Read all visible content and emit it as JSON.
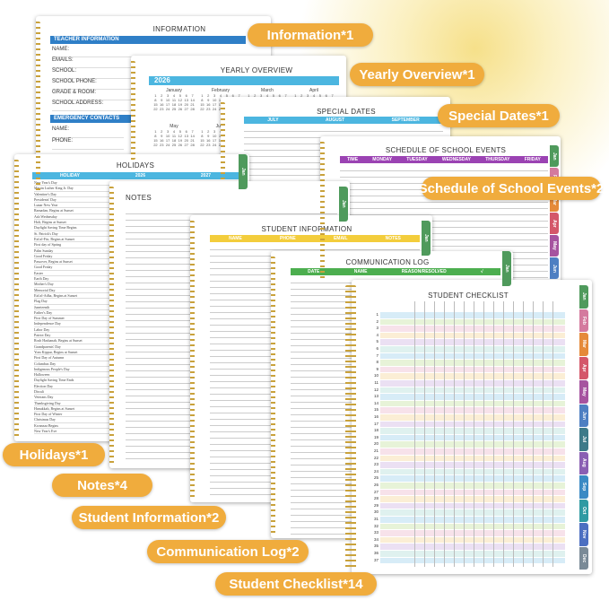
{
  "labels": {
    "information": "Information*1",
    "yearly": "Yearly Overview*1",
    "special": "Special Dates*1",
    "schedule": "Schedule of School Events*2",
    "holidays": "Holidays*1",
    "notes": "Notes*4",
    "student_info": "Student Information*2",
    "comm": "Communication Log*2",
    "checklist": "Student Checklist*14"
  },
  "information": {
    "title": "INFORMATION",
    "teacher": "TEACHER INFORMATION",
    "fields": [
      "NAME:",
      "EMAILS:",
      "SCHOOL:",
      "SCHOOL PHONE:",
      "GRADE & ROOM:",
      "SCHOOL ADDRESS:"
    ],
    "emergency": "EMERGENCY CONTACTS",
    "efields": [
      "NAME:",
      "PHONE:"
    ]
  },
  "yearly": {
    "title": "YEARLY OVERVIEW",
    "year": "2026",
    "months": [
      "January",
      "February",
      "March",
      "April",
      "May",
      "June"
    ]
  },
  "special": {
    "title": "SPECIAL DATES",
    "cols": [
      "JULY",
      "AUGUST",
      "SEPTEMBER"
    ]
  },
  "schedule": {
    "title": "SCHEDULE OF SCHOOL EVENTS",
    "cols": [
      "TIME",
      "MONDAY",
      "TUESDAY",
      "WEDNESDAY",
      "THURSDAY",
      "FRIDAY"
    ]
  },
  "holidays": {
    "title": "HOLIDAYS",
    "cols": [
      "HOLIDAY",
      "2026",
      "2027"
    ],
    "items": [
      "New Year's Day",
      "Martin Luther King Jr. Day",
      "Valentine's Day",
      "Presidents' Day",
      "Lunar New Year",
      "Ramadan, Begins at Sunset",
      "Ash Wednesday",
      "Holi, Begins at Sunset",
      "Daylight Saving Time Begins",
      "St. Patrick's Day",
      "Eid al-Fitr, Begins at Sunset",
      "First day of Spring",
      "Palm Sunday",
      "Good Friday",
      "Passover, Begins at Sunset",
      "Good Friday",
      "Easter",
      "Earth Day",
      "Mother's Day",
      "Memorial Day",
      "Eid al-Adha, Begins at Sunset",
      "Flag Day",
      "Juneteenth",
      "Father's Day",
      "First Day of Summer",
      "Independence Day",
      "Labor Day",
      "Patriot Day",
      "Rosh Hashanah, Begins at Sunset",
      "Grandparents' Day",
      "Yom Kippur, Begins at Sunset",
      "First Day of Autumn",
      "Columbus Day",
      "Indigenous People's Day",
      "Halloween",
      "Daylight Saving Time Ends",
      "Election Day",
      "Diwali",
      "Veterans Day",
      "Thanksgiving Day",
      "Hanukkah, Begins at Sunset",
      "First Day of Winter",
      "Christmas Day",
      "Kwanzaa Begins",
      "New Year's Eve"
    ]
  },
  "notes": {
    "title": "NOTES"
  },
  "student_info": {
    "title": "STUDENT INFORMATION",
    "cols": [
      "NAME",
      "PHONE",
      "EMAIL",
      "NOTES"
    ]
  },
  "comm": {
    "title": "COMMUNICATION LOG",
    "cols": [
      "DATE",
      "NAME",
      "REASON/RESOLVED",
      "√"
    ]
  },
  "checklist": {
    "title": "STUDENT CHECKLIST",
    "rows": 37
  },
  "tabs": [
    "Jan",
    "Feb",
    "Mar",
    "Apr",
    "May",
    "Jun",
    "Jul",
    "Aug",
    "Sep",
    "Oct",
    "Nov",
    "Dec"
  ],
  "tab_colors": [
    "#4f9a5c",
    "#d47a9e",
    "#e58a3a",
    "#d4576a",
    "#a6539f",
    "#4e7fc2",
    "#3d7a89",
    "#8a5fb3",
    "#3a8ac4",
    "#2f9aa3",
    "#4c6fc1",
    "#7a8a97"
  ],
  "colors": {
    "blue": "#2f7fc7",
    "orange": "#f0ac3d",
    "yellow": "#f3cd3c",
    "green": "#4cae4f",
    "purple": "#9b43b3",
    "sky": "#4cb6e0"
  }
}
